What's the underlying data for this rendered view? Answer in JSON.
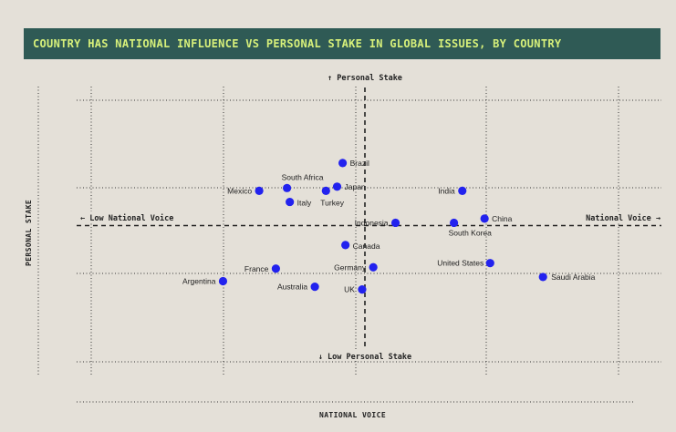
{
  "title": "COUNTRY HAS NATIONAL INFLUENCE VS PERSONAL STAKE IN GLOBAL ISSUES, BY COUNTRY",
  "colors": {
    "title_bg": "#2f5a55",
    "title_text": "#d7f07a",
    "point": "#2222ee",
    "background": "#e4e0d8"
  },
  "chart_data": {
    "type": "scatter",
    "xlabel": "NATIONAL VOICE",
    "ylabel": "PERSONAL STAKE",
    "quadrant_labels": {
      "top": "↑ Personal Stake",
      "bottom": "↓ Low Personal Stake",
      "left": "← Low National Voice",
      "right": "National Voice →"
    },
    "xlim": [
      0,
      10
    ],
    "ylim": [
      0,
      10
    ],
    "center": {
      "x": 5,
      "y": 5
    },
    "grid": true,
    "points": [
      {
        "label": "Brazil",
        "x": 4.6,
        "y": 7.25
      },
      {
        "label": "South Africa",
        "x": 3.6,
        "y": 6.35
      },
      {
        "label": "Japan",
        "x": 4.5,
        "y": 6.4
      },
      {
        "label": "Mexico",
        "x": 3.1,
        "y": 6.25
      },
      {
        "label": "Turkey",
        "x": 4.3,
        "y": 6.25
      },
      {
        "label": "Italy",
        "x": 3.65,
        "y": 5.85
      },
      {
        "label": "India",
        "x": 6.75,
        "y": 6.25
      },
      {
        "label": "Indonesia",
        "x": 5.55,
        "y": 5.1
      },
      {
        "label": "South Korea",
        "x": 6.6,
        "y": 5.1
      },
      {
        "label": "China",
        "x": 7.15,
        "y": 5.25
      },
      {
        "label": "Canada",
        "x": 4.65,
        "y": 4.3
      },
      {
        "label": "United States",
        "x": 7.25,
        "y": 3.65
      },
      {
        "label": "Germany",
        "x": 5.15,
        "y": 3.5
      },
      {
        "label": "France",
        "x": 3.4,
        "y": 3.45
      },
      {
        "label": "Saudi Arabia",
        "x": 8.2,
        "y": 3.15
      },
      {
        "label": "Argentina",
        "x": 2.45,
        "y": 3.0
      },
      {
        "label": "Australia",
        "x": 4.1,
        "y": 2.8
      },
      {
        "label": "UK",
        "x": 4.95,
        "y": 2.7
      }
    ]
  }
}
